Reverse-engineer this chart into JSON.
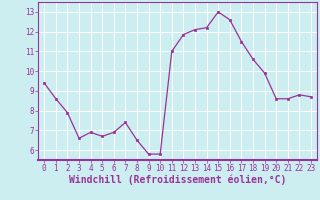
{
  "x": [
    0,
    1,
    2,
    3,
    4,
    5,
    6,
    7,
    8,
    9,
    10,
    11,
    12,
    13,
    14,
    15,
    16,
    17,
    18,
    19,
    20,
    21,
    22,
    23
  ],
  "y": [
    9.4,
    8.6,
    7.9,
    6.6,
    6.9,
    6.7,
    6.9,
    7.4,
    6.5,
    5.8,
    5.8,
    11.0,
    11.85,
    12.1,
    12.2,
    13.0,
    12.6,
    11.5,
    10.6,
    9.9,
    8.6,
    8.6,
    8.8,
    8.7
  ],
  "line_color": "#993399",
  "marker": "s",
  "marker_size": 2.0,
  "bg_color": "#cceef0",
  "grid_color": "#ffffff",
  "xlabel": "Windchill (Refroidissement éolien,°C)",
  "xlabel_color": "#993399",
  "tick_color": "#993399",
  "label_color": "#993399",
  "ylim": [
    5.5,
    13.5
  ],
  "xlim": [
    -0.5,
    23.5
  ],
  "yticks": [
    6,
    7,
    8,
    9,
    10,
    11,
    12,
    13
  ],
  "xticks": [
    0,
    1,
    2,
    3,
    4,
    5,
    6,
    7,
    8,
    9,
    10,
    11,
    12,
    13,
    14,
    15,
    16,
    17,
    18,
    19,
    20,
    21,
    22,
    23
  ],
  "tick_fontsize": 5.5,
  "xlabel_fontsize": 7.0,
  "spine_color": "#993399",
  "linewidth": 0.9
}
